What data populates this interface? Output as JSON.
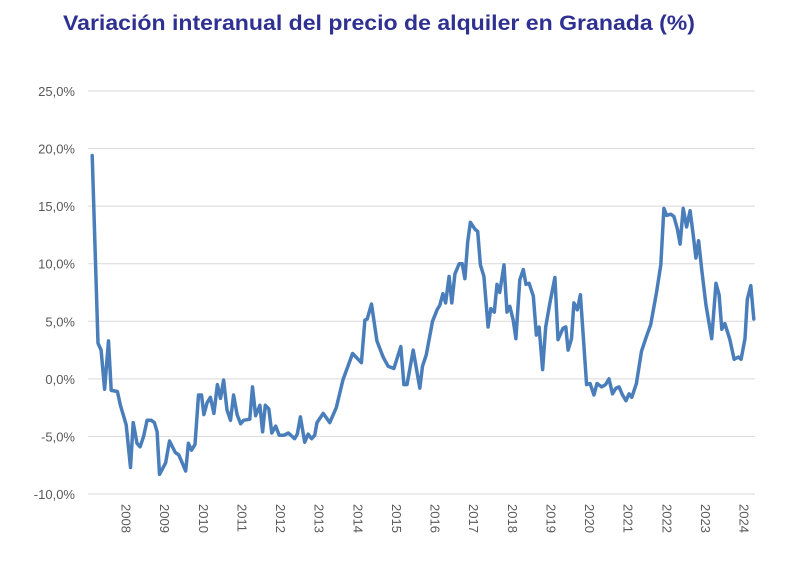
{
  "chart_data": {
    "type": "line",
    "title": "Variación interanual del precio de alquiler en Granada (%)",
    "title_color": "#2e3192",
    "line_color": "#4a7ebb",
    "xlabel": "",
    "ylabel": "",
    "grid": true,
    "legend": "none",
    "ylim": [
      -10,
      25
    ],
    "xlim": [
      2007.0,
      2024.27
    ],
    "y_ticks": [
      -10,
      -5,
      0,
      5,
      10,
      15,
      20,
      25
    ],
    "y_tick_labels": [
      "-10,0%",
      "-5,0%",
      "0,0%",
      "5,0%",
      "10,0%",
      "15,0%",
      "20,0%",
      "25,0%"
    ],
    "x_ticks": [
      2008,
      2009,
      2010,
      2011,
      2012,
      2013,
      2014,
      2015,
      2016,
      2017,
      2018,
      2019,
      2020,
      2021,
      2022,
      2023,
      2024
    ],
    "x_tick_labels": [
      "2008",
      "2009",
      "2010",
      "2011",
      "2012",
      "2013",
      "2014",
      "2015",
      "2016",
      "2017",
      "2018",
      "2019",
      "2020",
      "2021",
      "2022",
      "2023",
      "2024"
    ],
    "series": [
      {
        "x": [
          2007.11,
          2007.26,
          2007.34,
          2007.43,
          2007.53,
          2007.6,
          2007.76,
          2007.84,
          2007.99,
          2008.1,
          2008.17,
          2008.27,
          2008.35,
          2008.44,
          2008.53,
          2008.64,
          2008.72,
          2008.79,
          2008.85,
          2009.01,
          2009.11,
          2009.26,
          2009.35,
          2009.53,
          2009.6,
          2009.68,
          2009.77,
          2009.86,
          2009.94,
          2010.0,
          2010.08,
          2010.17,
          2010.26,
          2010.35,
          2010.43,
          2010.51,
          2010.6,
          2010.69,
          2010.77,
          2010.86,
          2010.95,
          2011.03,
          2011.19,
          2011.26,
          2011.34,
          2011.45,
          2011.52,
          2011.59,
          2011.68,
          2011.76,
          2011.86,
          2011.95,
          2012.07,
          2012.19,
          2012.35,
          2012.42,
          2012.5,
          2012.61,
          2012.7,
          2012.79,
          2012.87,
          2012.93,
          2013.09,
          2013.26,
          2013.43,
          2013.6,
          2013.85,
          2014.08,
          2014.17,
          2014.23,
          2014.34,
          2014.48,
          2014.64,
          2014.77,
          2014.92,
          2015.1,
          2015.18,
          2015.26,
          2015.42,
          2015.59,
          2015.66,
          2015.76,
          2015.92,
          2016.04,
          2016.11,
          2016.19,
          2016.26,
          2016.35,
          2016.42,
          2016.5,
          2016.61,
          2016.69,
          2016.76,
          2016.83,
          2016.9,
          2017.02,
          2017.09,
          2017.16,
          2017.25,
          2017.36,
          2017.43,
          2017.52,
          2017.59,
          2017.66,
          2017.77,
          2017.85,
          2017.92,
          2018.01,
          2018.08,
          2018.18,
          2018.27,
          2018.34,
          2018.42,
          2018.53,
          2018.61,
          2018.68,
          2018.77,
          2018.85,
          2018.96,
          2019.09,
          2019.17,
          2019.3,
          2019.37,
          2019.43,
          2019.52,
          2019.58,
          2019.67,
          2019.75,
          2019.91,
          2020.0,
          2020.1,
          2020.18,
          2020.3,
          2020.4,
          2020.49,
          2020.58,
          2020.67,
          2020.75,
          2020.84,
          2020.93,
          2021.01,
          2021.08,
          2021.2,
          2021.33,
          2021.46,
          2021.57,
          2021.72,
          2021.83,
          2021.91,
          2021.98,
          2022.09,
          2022.17,
          2022.26,
          2022.33,
          2022.41,
          2022.5,
          2022.59,
          2022.67,
          2022.74,
          2022.81,
          2022.89,
          2023.0,
          2023.15,
          2023.26,
          2023.34,
          2023.41,
          2023.49,
          2023.62,
          2023.73,
          2023.84,
          2023.91,
          2024.01,
          2024.07,
          2024.16,
          2024.24
        ],
        "y": [
          19.4,
          3.1,
          2.5,
          -0.9,
          3.3,
          -1.0,
          -1.1,
          -2.3,
          -4.0,
          -7.7,
          -3.8,
          -5.6,
          -5.9,
          -5.0,
          -3.6,
          -3.6,
          -3.8,
          -4.6,
          -8.3,
          -7.3,
          -5.4,
          -6.4,
          -6.6,
          -8.0,
          -5.6,
          -6.2,
          -5.7,
          -1.4,
          -1.4,
          -3.1,
          -2.1,
          -1.6,
          -3.0,
          -0.5,
          -1.7,
          -0.1,
          -2.7,
          -3.6,
          -1.4,
          -3.1,
          -3.9,
          -3.6,
          -3.5,
          -0.7,
          -3.2,
          -2.3,
          -4.6,
          -2.3,
          -2.6,
          -4.7,
          -4.1,
          -4.9,
          -4.9,
          -4.7,
          -5.2,
          -4.8,
          -3.3,
          -5.5,
          -4.8,
          -5.2,
          -4.9,
          -3.8,
          -3.0,
          -3.8,
          -2.5,
          -0.1,
          2.2,
          1.4,
          5.1,
          5.2,
          6.5,
          3.3,
          1.9,
          1.1,
          0.9,
          2.8,
          -0.5,
          -0.5,
          2.5,
          -0.8,
          1.1,
          2.1,
          5.0,
          6.0,
          6.4,
          7.4,
          6.6,
          8.9,
          6.6,
          9.1,
          10.0,
          10.0,
          8.7,
          11.9,
          13.6,
          13.0,
          12.8,
          9.9,
          8.9,
          4.5,
          6.1,
          5.8,
          8.2,
          7.5,
          9.9,
          5.8,
          6.3,
          5.1,
          3.5,
          8.6,
          9.5,
          8.2,
          8.3,
          7.2,
          3.8,
          4.5,
          0.8,
          4.5,
          6.6,
          8.8,
          3.4,
          4.4,
          4.5,
          2.5,
          3.5,
          6.6,
          6.0,
          7.3,
          -0.5,
          -0.4,
          -1.4,
          -0.4,
          -0.7,
          -0.5,
          0.0,
          -1.3,
          -0.8,
          -0.7,
          -1.4,
          -1.9,
          -1.3,
          -1.6,
          -0.4,
          2.4,
          3.7,
          4.7,
          7.5,
          9.9,
          14.8,
          14.2,
          14.3,
          14.1,
          13.0,
          11.7,
          14.8,
          13.2,
          14.6,
          12.5,
          10.5,
          12.0,
          9.5,
          6.4,
          3.5,
          8.3,
          7.3,
          4.3,
          4.8,
          3.4,
          1.7,
          1.9,
          1.7,
          3.5,
          6.9,
          8.1,
          5.2
        ]
      }
    ]
  }
}
